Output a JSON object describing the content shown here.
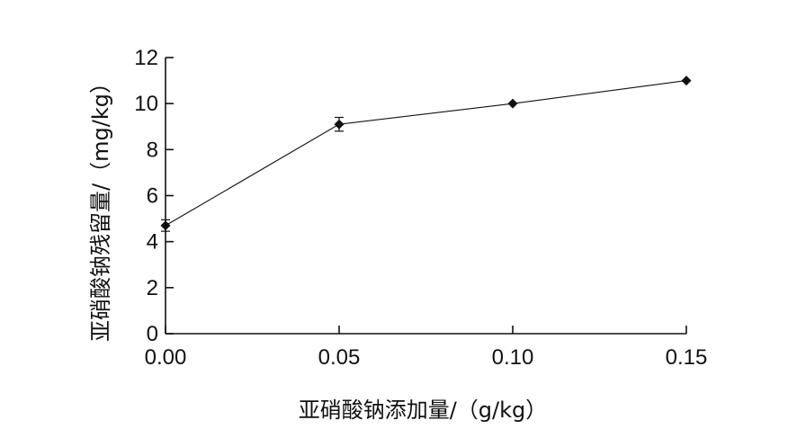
{
  "chart_data": {
    "type": "line",
    "xlabel": "亚硝酸钠添加量/（g/kg）",
    "ylabel": "亚硝酸钠残留量/（mg/kg）",
    "x_tick_labels": [
      "0.00",
      "0.05",
      "0.10",
      "0.15"
    ],
    "x_ticks": [
      0.0,
      0.05,
      0.1,
      0.15
    ],
    "y_ticks": [
      0,
      2,
      4,
      6,
      8,
      10,
      12
    ],
    "y_tick_labels": [
      "0",
      "2",
      "4",
      "6",
      "8",
      "10",
      "12"
    ],
    "xlim": [
      0.0,
      0.15
    ],
    "ylim": [
      0,
      12
    ],
    "grid": false,
    "series": [
      {
        "x": [
          0.0,
          0.05,
          0.1,
          0.15
        ],
        "y": [
          4.7,
          9.1,
          10.0,
          11.0
        ],
        "error": [
          0.25,
          0.3,
          0.0,
          0.0
        ],
        "marker": "diamond",
        "color": "#111111"
      }
    ]
  }
}
